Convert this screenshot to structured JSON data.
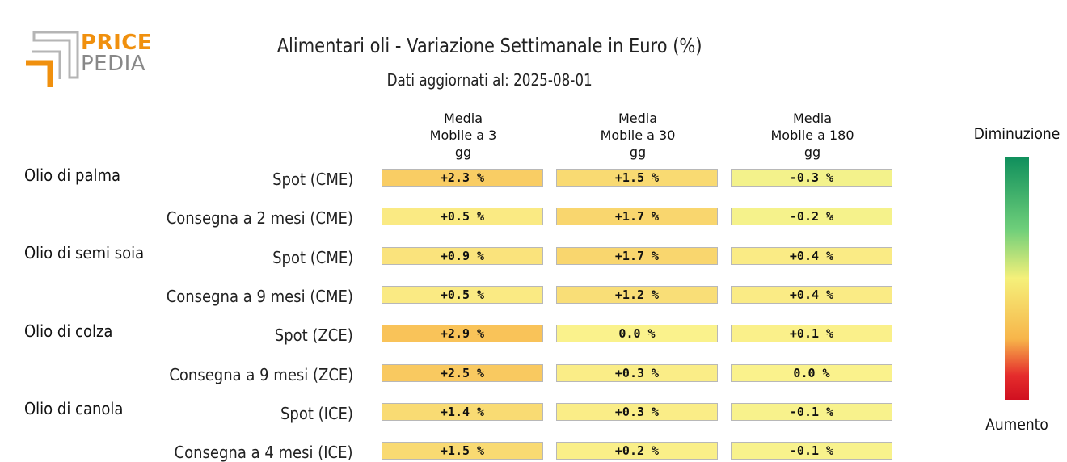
{
  "logo": {
    "line1": "PRICE",
    "line2": "PEDIA"
  },
  "colors": {
    "logo_orange": "#f0900e",
    "logo_gray": "#888888"
  },
  "chart_data": {
    "type": "table",
    "title": "Alimentari oli - Variazione Settimanale in Euro (%)",
    "subtitle": "Dati aggiornati al: 2025-08-01",
    "columns": [
      {
        "l1": "Media",
        "l2": "Mobile a 3",
        "l3": "gg"
      },
      {
        "l1": "Media",
        "l2": "Mobile a 30",
        "l3": "gg"
      },
      {
        "l1": "Media",
        "l2": "Mobile a 180",
        "l3": "gg"
      }
    ],
    "groups": [
      "Olio di palma",
      "Olio di semi soia",
      "Olio di colza",
      "Olio di canola"
    ],
    "rows": [
      {
        "group": "Olio di palma",
        "label": "Spot (CME)",
        "values": [
          2.3,
          1.5,
          -0.3
        ],
        "texts": [
          "+2.3 %",
          "+1.5 %",
          "-0.3 %"
        ]
      },
      {
        "group": "Olio di palma",
        "label": "Consegna a 2 mesi (CME)",
        "values": [
          0.5,
          1.7,
          -0.2
        ],
        "texts": [
          "+0.5 %",
          "+1.7 %",
          "-0.2 %"
        ]
      },
      {
        "group": "Olio di semi soia",
        "label": "Spot (CME)",
        "values": [
          0.9,
          1.7,
          0.4
        ],
        "texts": [
          "+0.9 %",
          "+1.7 %",
          "+0.4 %"
        ]
      },
      {
        "group": "Olio di semi soia",
        "label": "Consegna a 9 mesi (CME)",
        "values": [
          0.5,
          1.2,
          0.4
        ],
        "texts": [
          "+0.5 %",
          "+1.2 %",
          "+0.4 %"
        ]
      },
      {
        "group": "Olio di colza",
        "label": "Spot (ZCE)",
        "values": [
          2.9,
          0.0,
          0.1
        ],
        "texts": [
          "+2.9 %",
          "0.0 %",
          "+0.1 %"
        ]
      },
      {
        "group": "Olio di colza",
        "label": "Consegna a 9 mesi (ZCE)",
        "values": [
          2.5,
          0.3,
          0.0
        ],
        "texts": [
          "+2.5 %",
          "+0.3 %",
          "0.0 %"
        ]
      },
      {
        "group": "Olio di canola",
        "label": "Spot (ICE)",
        "values": [
          1.4,
          0.3,
          -0.1
        ],
        "texts": [
          "+1.4 %",
          "+0.3 %",
          "-0.1 %"
        ]
      },
      {
        "group": "Olio di canola",
        "label": "Consegna a 4 mesi (ICE)",
        "values": [
          1.5,
          0.2,
          -0.1
        ],
        "texts": [
          "+1.5 %",
          "+0.2 %",
          "-0.1 %"
        ]
      }
    ],
    "legend": {
      "top": "Diminuzione",
      "bottom": "Aumento"
    }
  }
}
